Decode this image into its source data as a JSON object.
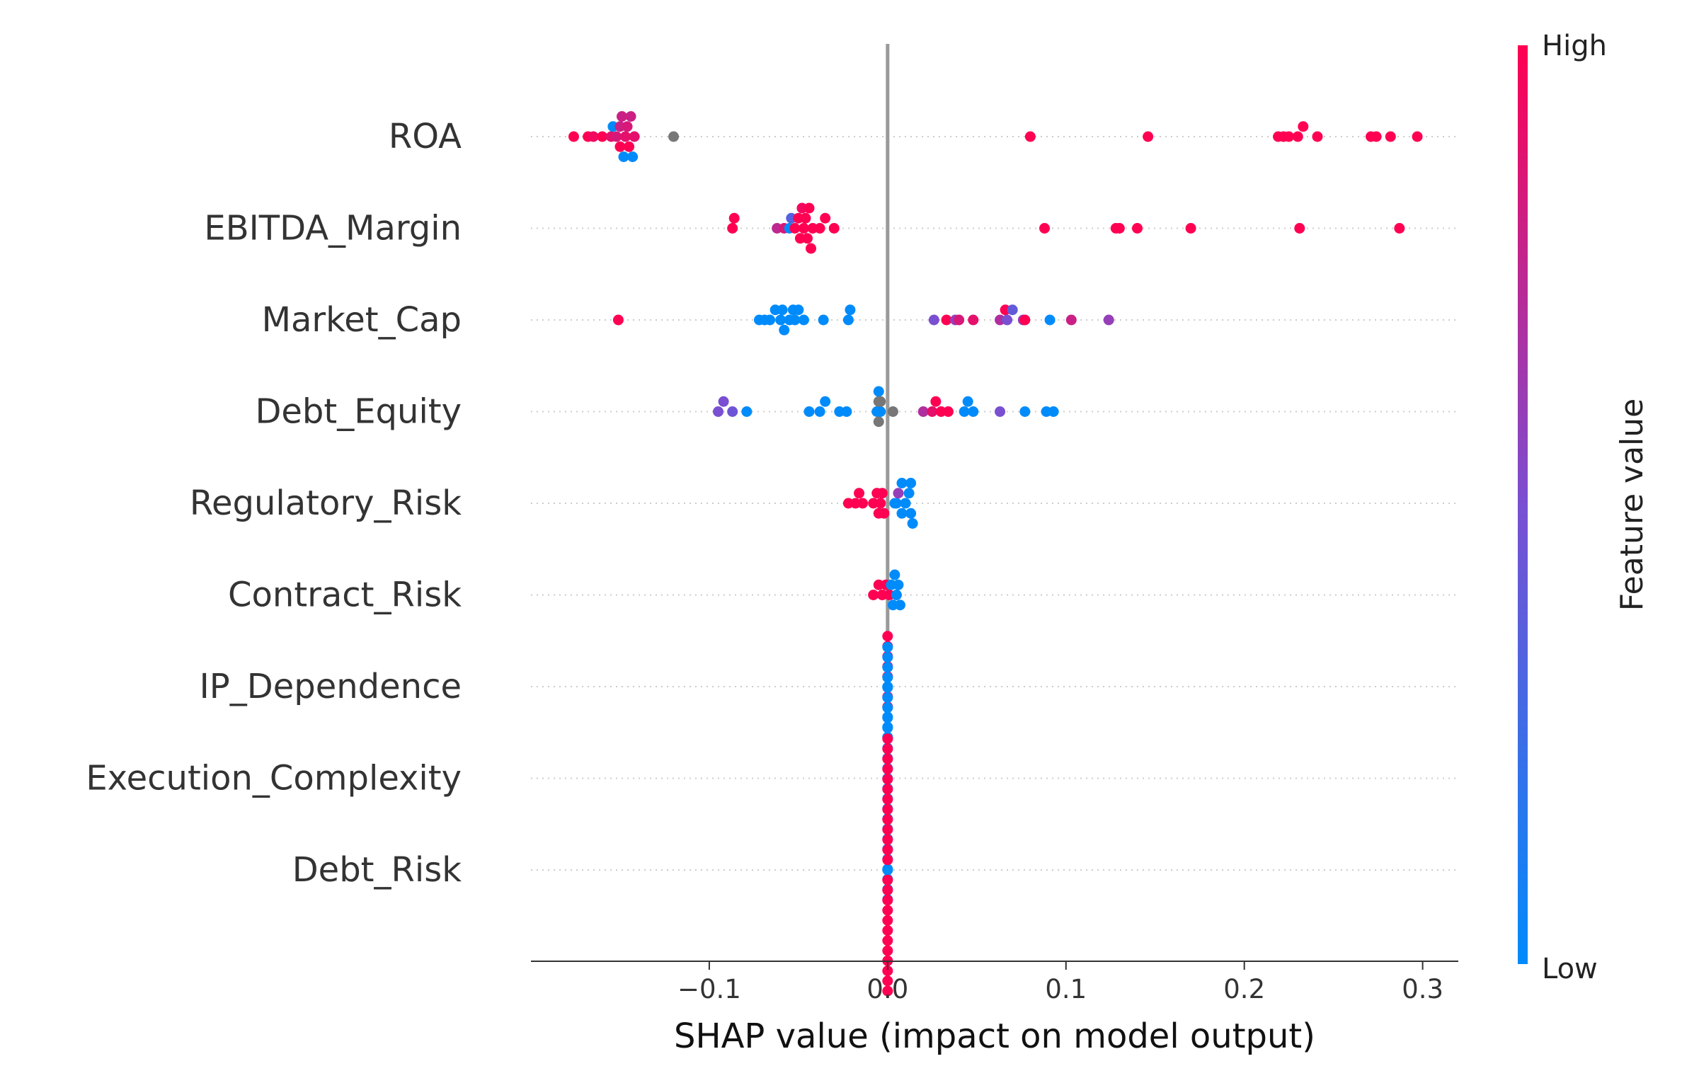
{
  "chart_data": {
    "type": "scatter",
    "subtype": "shap-beeswarm",
    "title": "",
    "xlabel": "SHAP value (impact on model output)",
    "ylabel": "",
    "xlim": [
      -0.2,
      0.32
    ],
    "xticks": [
      -0.1,
      0.0,
      0.1,
      0.2,
      0.3
    ],
    "xtick_labels": [
      "−0.1",
      "0.0",
      "0.1",
      "0.2",
      "0.3"
    ],
    "grid": false,
    "zero_line": true,
    "colorbar": {
      "label": "Feature value",
      "high_label": "High",
      "low_label": "Low",
      "low_color": "#008bfb",
      "mid_color": "#7a4fd1",
      "high_color": "#ff0052",
      "missing_color": "#777777",
      "placement": "right"
    },
    "features": [
      {
        "name": "ROA",
        "points": [
          {
            "x": -0.176,
            "v": 1.0
          },
          {
            "x": -0.168,
            "v": 1.0
          },
          {
            "x": -0.165,
            "v": 0.95
          },
          {
            "x": -0.16,
            "v": 1.0
          },
          {
            "x": -0.155,
            "v": 0.9
          },
          {
            "x": -0.154,
            "v": 0.0
          },
          {
            "x": -0.152,
            "v": 0.85
          },
          {
            "x": -0.15,
            "v": 0.8
          },
          {
            "x": -0.15,
            "v": 1.0
          },
          {
            "x": -0.149,
            "v": 0.8
          },
          {
            "x": -0.148,
            "v": 0.0
          },
          {
            "x": -0.147,
            "v": 0.9
          },
          {
            "x": -0.146,
            "v": 0.85
          },
          {
            "x": -0.145,
            "v": 1.0
          },
          {
            "x": -0.144,
            "v": 0.8
          },
          {
            "x": -0.143,
            "v": 0.0
          },
          {
            "x": -0.142,
            "v": 0.9
          },
          {
            "x": -0.12,
            "v": null
          },
          {
            "x": 0.08,
            "v": 1.0
          },
          {
            "x": 0.146,
            "v": 1.0
          },
          {
            "x": 0.219,
            "v": 1.0
          },
          {
            "x": 0.222,
            "v": 1.0
          },
          {
            "x": 0.225,
            "v": 1.0
          },
          {
            "x": 0.23,
            "v": 1.0
          },
          {
            "x": 0.233,
            "v": 1.0
          },
          {
            "x": 0.241,
            "v": 1.0
          },
          {
            "x": 0.271,
            "v": 1.0
          },
          {
            "x": 0.274,
            "v": 1.0
          },
          {
            "x": 0.282,
            "v": 1.0
          },
          {
            "x": 0.297,
            "v": 1.0
          }
        ]
      },
      {
        "name": "EBITDA_Margin",
        "points": [
          {
            "x": -0.087,
            "v": 1.0
          },
          {
            "x": -0.086,
            "v": 1.0
          },
          {
            "x": -0.062,
            "v": 0.75
          },
          {
            "x": -0.058,
            "v": 0.85
          },
          {
            "x": -0.055,
            "v": 0.0
          },
          {
            "x": -0.054,
            "v": 0.35
          },
          {
            "x": -0.052,
            "v": 1.0
          },
          {
            "x": -0.05,
            "v": 1.0
          },
          {
            "x": -0.049,
            "v": 1.0
          },
          {
            "x": -0.048,
            "v": 0.95
          },
          {
            "x": -0.047,
            "v": 1.0
          },
          {
            "x": -0.046,
            "v": 1.0
          },
          {
            "x": -0.045,
            "v": 1.0
          },
          {
            "x": -0.044,
            "v": 1.0
          },
          {
            "x": -0.043,
            "v": 1.0
          },
          {
            "x": -0.042,
            "v": 1.0
          },
          {
            "x": -0.038,
            "v": 1.0
          },
          {
            "x": -0.035,
            "v": 1.0
          },
          {
            "x": -0.03,
            "v": 1.0
          },
          {
            "x": 0.088,
            "v": 1.0
          },
          {
            "x": 0.128,
            "v": 1.0
          },
          {
            "x": 0.13,
            "v": 1.0
          },
          {
            "x": 0.14,
            "v": 1.0
          },
          {
            "x": 0.17,
            "v": 1.0
          },
          {
            "x": 0.231,
            "v": 1.0
          },
          {
            "x": 0.287,
            "v": 1.0
          }
        ]
      },
      {
        "name": "Market_Cap",
        "points": [
          {
            "x": -0.151,
            "v": 1.0
          },
          {
            "x": -0.072,
            "v": 0.0
          },
          {
            "x": -0.069,
            "v": 0.0
          },
          {
            "x": -0.066,
            "v": 0.0
          },
          {
            "x": -0.063,
            "v": 0.0
          },
          {
            "x": -0.06,
            "v": 0.0
          },
          {
            "x": -0.059,
            "v": 0.0
          },
          {
            "x": -0.058,
            "v": 0.0
          },
          {
            "x": -0.055,
            "v": 0.0
          },
          {
            "x": -0.053,
            "v": 0.0
          },
          {
            "x": -0.052,
            "v": 0.0
          },
          {
            "x": -0.05,
            "v": 0.0
          },
          {
            "x": -0.047,
            "v": 0.0
          },
          {
            "x": -0.036,
            "v": 0.0
          },
          {
            "x": -0.022,
            "v": 0.0
          },
          {
            "x": -0.021,
            "v": 0.0
          },
          {
            "x": 0.026,
            "v": 0.5
          },
          {
            "x": 0.033,
            "v": 1.0
          },
          {
            "x": 0.038,
            "v": 0.6
          },
          {
            "x": 0.04,
            "v": 0.85
          },
          {
            "x": 0.048,
            "v": 0.9
          },
          {
            "x": 0.063,
            "v": 0.7
          },
          {
            "x": 0.066,
            "v": 1.0
          },
          {
            "x": 0.067,
            "v": 0.5
          },
          {
            "x": 0.07,
            "v": 0.4
          },
          {
            "x": 0.076,
            "v": 0.6
          },
          {
            "x": 0.077,
            "v": 1.0
          },
          {
            "x": 0.091,
            "v": 0.0
          },
          {
            "x": 0.103,
            "v": 0.8
          },
          {
            "x": 0.124,
            "v": 0.6
          }
        ]
      },
      {
        "name": "Debt_Equity",
        "points": [
          {
            "x": -0.095,
            "v": 0.5
          },
          {
            "x": -0.092,
            "v": 0.5
          },
          {
            "x": -0.087,
            "v": 0.45
          },
          {
            "x": -0.079,
            "v": 0.0
          },
          {
            "x": -0.044,
            "v": 0.0
          },
          {
            "x": -0.038,
            "v": 0.0
          },
          {
            "x": -0.035,
            "v": 0.0
          },
          {
            "x": -0.027,
            "v": 0.0
          },
          {
            "x": -0.023,
            "v": 0.0
          },
          {
            "x": -0.006,
            "v": 0.0
          },
          {
            "x": -0.005,
            "v": null
          },
          {
            "x": -0.005,
            "v": null
          },
          {
            "x": -0.004,
            "v": 0.0
          },
          {
            "x": -0.004,
            "v": null
          },
          {
            "x": -0.005,
            "v": 0.0
          },
          {
            "x": 0.003,
            "v": null
          },
          {
            "x": 0.02,
            "v": 0.7
          },
          {
            "x": 0.025,
            "v": 0.9
          },
          {
            "x": 0.027,
            "v": 1.0
          },
          {
            "x": 0.03,
            "v": 1.0
          },
          {
            "x": 0.034,
            "v": 1.0
          },
          {
            "x": 0.043,
            "v": 0.0
          },
          {
            "x": 0.045,
            "v": 0.0
          },
          {
            "x": 0.048,
            "v": 0.0
          },
          {
            "x": 0.063,
            "v": 0.5
          },
          {
            "x": 0.077,
            "v": 0.0
          },
          {
            "x": 0.089,
            "v": 0.0
          },
          {
            "x": 0.093,
            "v": 0.0
          }
        ]
      },
      {
        "name": "Regulatory_Risk",
        "points": [
          {
            "x": -0.022,
            "v": 1.0
          },
          {
            "x": -0.018,
            "v": 1.0
          },
          {
            "x": -0.016,
            "v": 1.0
          },
          {
            "x": -0.014,
            "v": 1.0
          },
          {
            "x": -0.008,
            "v": 1.0
          },
          {
            "x": -0.006,
            "v": 1.0
          },
          {
            "x": -0.005,
            "v": 1.0
          },
          {
            "x": -0.004,
            "v": 1.0
          },
          {
            "x": -0.003,
            "v": 1.0
          },
          {
            "x": -0.002,
            "v": 1.0
          },
          {
            "x": 0.004,
            "v": 0.0
          },
          {
            "x": 0.005,
            "v": 0.0
          },
          {
            "x": 0.006,
            "v": 0.6
          },
          {
            "x": 0.008,
            "v": 0.0
          },
          {
            "x": 0.008,
            "v": 0.0
          },
          {
            "x": 0.01,
            "v": 0.0
          },
          {
            "x": 0.012,
            "v": 0.0
          },
          {
            "x": 0.013,
            "v": 0.0
          },
          {
            "x": 0.013,
            "v": 0.0
          },
          {
            "x": 0.014,
            "v": 0.0
          }
        ]
      },
      {
        "name": "Contract_Risk",
        "points": [
          {
            "x": -0.008,
            "v": 1.0
          },
          {
            "x": -0.005,
            "v": 1.0
          },
          {
            "x": -0.003,
            "v": 1.0
          },
          {
            "x": -0.001,
            "v": 1.0
          },
          {
            "x": 0.001,
            "v": 1.0
          },
          {
            "x": 0.002,
            "v": 0.0
          },
          {
            "x": 0.003,
            "v": 0.0
          },
          {
            "x": 0.004,
            "v": 0.0
          },
          {
            "x": 0.005,
            "v": 0.0
          },
          {
            "x": 0.006,
            "v": 0.0
          },
          {
            "x": 0.007,
            "v": 0.0
          }
        ]
      },
      {
        "name": "IP_Dependence",
        "points": [
          {
            "x": 0.0,
            "v": 0.0
          },
          {
            "x": 0.0,
            "v": 1.0
          },
          {
            "x": 0.0,
            "v": 1.0
          },
          {
            "x": 0.0,
            "v": 1.0
          },
          {
            "x": 0.0,
            "v": 1.0
          },
          {
            "x": 0.0,
            "v": 1.0
          },
          {
            "x": 0.0,
            "v": 0.0
          },
          {
            "x": 0.0,
            "v": 1.0
          },
          {
            "x": 0.0,
            "v": 0.0
          },
          {
            "x": 0.0,
            "v": 1.0
          },
          {
            "x": 0.0,
            "v": 0.0
          }
        ]
      },
      {
        "name": "Execution_Complexity",
        "points": [
          {
            "x": 0.0,
            "v": 0.0
          },
          {
            "x": 0.0,
            "v": 0.0
          },
          {
            "x": 0.0,
            "v": 0.0
          },
          {
            "x": 0.0,
            "v": 0.0
          },
          {
            "x": 0.0,
            "v": 0.0
          },
          {
            "x": 0.0,
            "v": 0.0
          },
          {
            "x": 0.0,
            "v": 0.0
          },
          {
            "x": 0.0,
            "v": 0.0
          },
          {
            "x": 0.0,
            "v": 0.0
          },
          {
            "x": 0.0,
            "v": 0.0
          },
          {
            "x": 0.0,
            "v": 0.0
          },
          {
            "x": 0.0,
            "v": 0.0
          },
          {
            "x": 0.0,
            "v": 0.0
          },
          {
            "x": 0.0,
            "v": 0.0
          },
          {
            "x": 0.0,
            "v": 0.0
          },
          {
            "x": 0.0,
            "v": 0.0
          },
          {
            "x": 0.0,
            "v": 0.0
          },
          {
            "x": 0.0,
            "v": 0.0
          },
          {
            "x": 0.0,
            "v": 0.0
          },
          {
            "x": 0.0,
            "v": 0.0
          },
          {
            "x": 0.0,
            "v": 0.0
          },
          {
            "x": 0.0,
            "v": 0.0
          },
          {
            "x": 0.0,
            "v": 0.0
          },
          {
            "x": 0.0,
            "v": 0.0
          },
          {
            "x": 0.0,
            "v": 0.0
          },
          {
            "x": 0.0,
            "v": 0.0
          }
        ]
      },
      {
        "name": "Debt_Risk",
        "points": [
          {
            "x": 0.0,
            "v": 0.0
          },
          {
            "x": 0.0,
            "v": 1.0
          },
          {
            "x": 0.0,
            "v": 1.0
          },
          {
            "x": 0.0,
            "v": 1.0
          },
          {
            "x": 0.0,
            "v": 1.0
          },
          {
            "x": 0.0,
            "v": 1.0
          },
          {
            "x": 0.0,
            "v": 1.0
          },
          {
            "x": 0.0,
            "v": 1.0
          },
          {
            "x": 0.0,
            "v": 1.0
          },
          {
            "x": 0.0,
            "v": 1.0
          },
          {
            "x": 0.0,
            "v": 1.0
          },
          {
            "x": 0.0,
            "v": 1.0
          },
          {
            "x": 0.0,
            "v": 1.0
          },
          {
            "x": 0.0,
            "v": 1.0
          },
          {
            "x": 0.0,
            "v": 1.0
          },
          {
            "x": 0.0,
            "v": 1.0
          },
          {
            "x": 0.0,
            "v": 1.0
          },
          {
            "x": 0.0,
            "v": 1.0
          },
          {
            "x": 0.0,
            "v": 1.0
          },
          {
            "x": 0.0,
            "v": 1.0
          },
          {
            "x": 0.0,
            "v": 1.0
          },
          {
            "x": 0.0,
            "v": 1.0
          },
          {
            "x": 0.0,
            "v": 1.0
          },
          {
            "x": 0.0,
            "v": 1.0
          },
          {
            "x": 0.0,
            "v": 1.0
          },
          {
            "x": 0.0,
            "v": 1.0
          }
        ]
      }
    ]
  }
}
